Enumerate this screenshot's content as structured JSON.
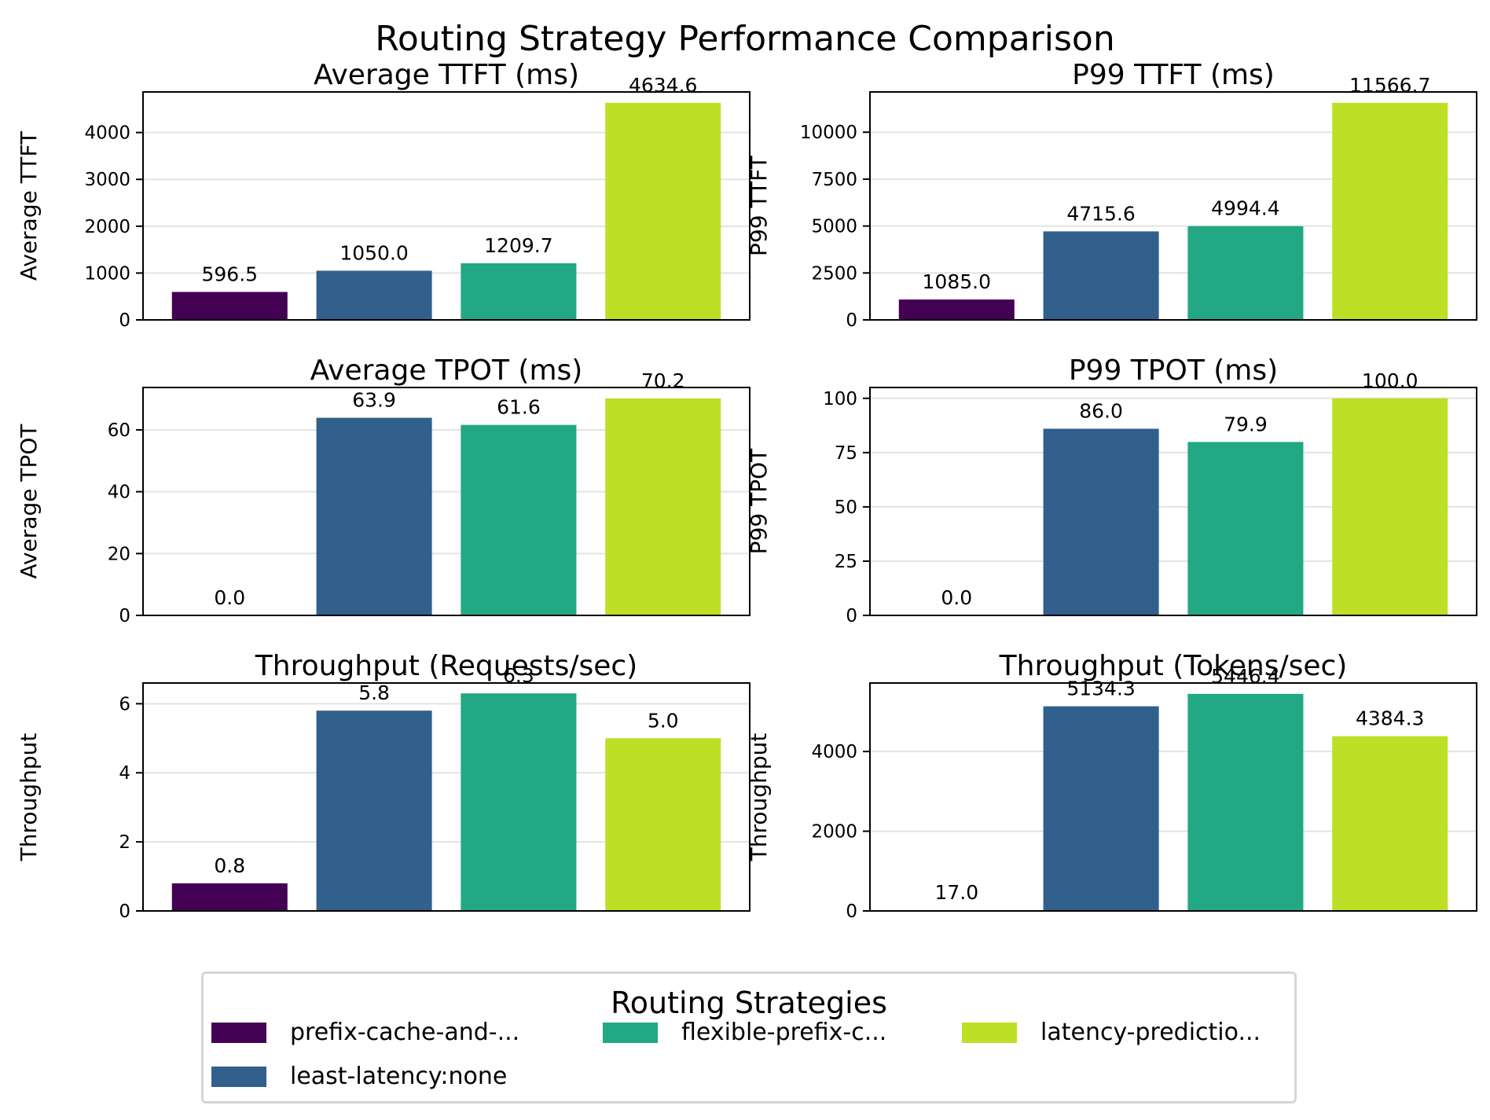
{
  "figure": {
    "title": "Routing Strategy Performance Comparison"
  },
  "legend": {
    "title": "Routing Strategies",
    "items": [
      {
        "label": "prefix-cache-and-...",
        "color": "#440154"
      },
      {
        "label": "least-latency:none",
        "color": "#31608d"
      },
      {
        "label": "flexible-prefix-c...",
        "color": "#22a884"
      },
      {
        "label": "latency-predictio...",
        "color": "#bddf26"
      }
    ]
  },
  "chart_data": [
    {
      "type": "bar",
      "title": "Average TTFT (ms)",
      "ylabel": "Average TTFT",
      "categories": [
        "prefix-cache-and-...",
        "least-latency:none",
        "flexible-prefix-c...",
        "latency-predictio..."
      ],
      "values": [
        596.5,
        1050.0,
        1209.7,
        4634.6
      ],
      "value_labels": [
        "596.5",
        "1050.0",
        "1209.7",
        "4634.6"
      ],
      "colors": [
        "#440154",
        "#31608d",
        "#22a884",
        "#bddf26"
      ],
      "ylim": [
        0,
        4866.3
      ],
      "yticks": [
        0,
        1000,
        2000,
        3000,
        4000
      ],
      "grid": true
    },
    {
      "type": "bar",
      "title": "P99 TTFT (ms)",
      "ylabel": "P99 TTFT",
      "categories": [
        "prefix-cache-and-...",
        "least-latency:none",
        "flexible-prefix-c...",
        "latency-predictio..."
      ],
      "values": [
        1085.0,
        4715.6,
        4994.4,
        11566.7
      ],
      "value_labels": [
        "1085.0",
        "4715.6",
        "4994.4",
        "11566.7"
      ],
      "colors": [
        "#440154",
        "#31608d",
        "#22a884",
        "#bddf26"
      ],
      "ylim": [
        0,
        12145
      ],
      "yticks": [
        0,
        2500,
        5000,
        7500,
        10000
      ],
      "grid": true
    },
    {
      "type": "bar",
      "title": "Average TPOT (ms)",
      "ylabel": "Average TPOT",
      "categories": [
        "prefix-cache-and-...",
        "least-latency:none",
        "flexible-prefix-c...",
        "latency-predictio..."
      ],
      "values": [
        0.0,
        63.9,
        61.6,
        70.2
      ],
      "value_labels": [
        "0.0",
        "63.9",
        "61.6",
        "70.2"
      ],
      "colors": [
        "#440154",
        "#31608d",
        "#22a884",
        "#bddf26"
      ],
      "ylim": [
        0,
        73.7
      ],
      "yticks": [
        0,
        20,
        40,
        60
      ],
      "grid": true
    },
    {
      "type": "bar",
      "title": "P99 TPOT (ms)",
      "ylabel": "P99 TPOT",
      "categories": [
        "prefix-cache-and-...",
        "least-latency:none",
        "flexible-prefix-c...",
        "latency-predictio..."
      ],
      "values": [
        0.0,
        86.0,
        79.9,
        100.0
      ],
      "value_labels": [
        "0.0",
        "86.0",
        "79.9",
        "100.0"
      ],
      "colors": [
        "#440154",
        "#31608d",
        "#22a884",
        "#bddf26"
      ],
      "ylim": [
        0,
        105
      ],
      "yticks": [
        0,
        25,
        50,
        75,
        100
      ],
      "grid": true
    },
    {
      "type": "bar",
      "title": "Throughput (Requests/sec)",
      "ylabel": "Throughput",
      "categories": [
        "prefix-cache-and-...",
        "least-latency:none",
        "flexible-prefix-c...",
        "latency-predictio..."
      ],
      "values": [
        0.8,
        5.8,
        6.3,
        5.0
      ],
      "value_labels": [
        "0.8",
        "5.8",
        "6.3",
        "5.0"
      ],
      "colors": [
        "#440154",
        "#31608d",
        "#22a884",
        "#bddf26"
      ],
      "ylim": [
        0,
        6.6
      ],
      "yticks": [
        0,
        2,
        4,
        6
      ],
      "grid": true
    },
    {
      "type": "bar",
      "title": "Throughput (Tokens/sec)",
      "ylabel": "Throughput",
      "categories": [
        "prefix-cache-and-...",
        "least-latency:none",
        "flexible-prefix-c...",
        "latency-predictio..."
      ],
      "values": [
        17.0,
        5134.3,
        5446.4,
        4384.3
      ],
      "value_labels": [
        "17.0",
        "5134.3",
        "5446.4",
        "4384.3"
      ],
      "colors": [
        "#440154",
        "#31608d",
        "#22a884",
        "#bddf26"
      ],
      "ylim": [
        0,
        5718.7
      ],
      "yticks": [
        0,
        2000,
        4000
      ],
      "grid": true
    }
  ]
}
